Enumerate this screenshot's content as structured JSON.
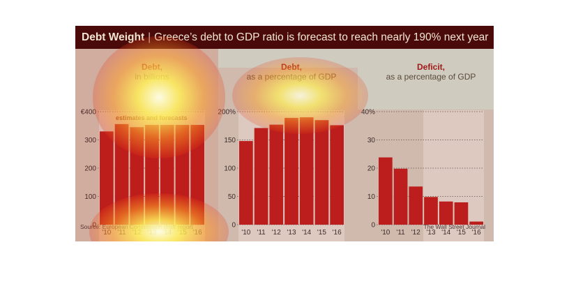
{
  "figure": {
    "title_bold": "Debt Weight",
    "title_sep": "|",
    "title_rest": "Greece’s debt to GDP ratio is forecast to reach nearly 190% next year",
    "source": "Source: European Commission draft report",
    "credit": "The Wall Street Journal",
    "colors": {
      "bar": "#b81d1d",
      "bar_shade": "#a8a3a0",
      "title_bg": "#4a0a0a",
      "accent": "#a01818",
      "background": "#cfcbbf"
    }
  },
  "chart_data": [
    {
      "type": "bar",
      "title_line1": "Debt,",
      "title_line2": "in billions",
      "annotation": "estimates and forecasts",
      "categories": [
        "'10",
        "'11",
        "'12",
        "'13",
        "'14",
        "'15",
        "'16"
      ],
      "y_ticks": [
        "€400",
        "300",
        "200",
        "100",
        "0"
      ],
      "values": [
        330,
        356,
        345,
        353,
        353,
        353,
        353
      ],
      "ylim": [
        0,
        400
      ],
      "grid": true
    },
    {
      "type": "bar",
      "title_line1": "Debt,",
      "title_line2": "as a percentage of GDP",
      "categories": [
        "'10",
        "'11",
        "'12",
        "'13",
        "'14",
        "'15",
        "'16"
      ],
      "y_ticks": [
        "200%",
        "150",
        "100",
        "50",
        "0"
      ],
      "values": [
        148,
        171,
        177,
        189,
        190,
        185,
        176
      ],
      "ylim": [
        0,
        200
      ],
      "grid": true
    },
    {
      "type": "bar",
      "title_line1": "Deficit,",
      "title_line2": "as a percentage of GDP",
      "categories": [
        "'10",
        "'11",
        "'12",
        "'13",
        "'14",
        "'15",
        "'16"
      ],
      "y_ticks": [
        "40%",
        "30",
        "20",
        "10",
        "0"
      ],
      "values": [
        23.8,
        19.8,
        13.5,
        9.8,
        8.2,
        7.9,
        1.1
      ],
      "ylim": [
        0,
        40
      ],
      "grid": true
    }
  ]
}
